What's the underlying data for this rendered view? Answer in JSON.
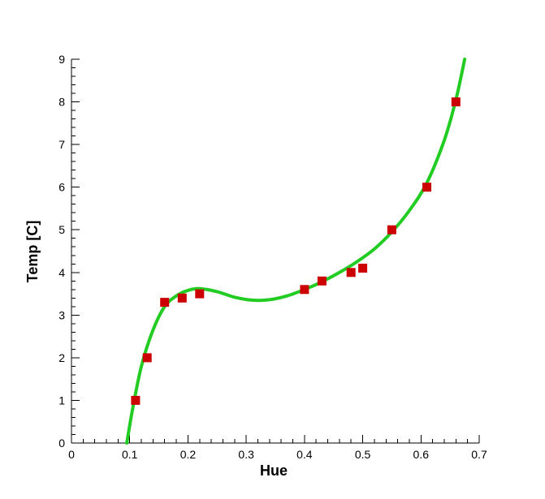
{
  "chart_data": {
    "type": "scatter",
    "title": "",
    "xlabel": "Hue",
    "ylabel": "Temp [C]",
    "xlim": [
      0,
      0.7
    ],
    "ylim": [
      0,
      9
    ],
    "x_ticks": [
      "0",
      "0.1",
      "0.2",
      "0.3",
      "0.4",
      "0.5",
      "0.6",
      "0.7"
    ],
    "y_ticks": [
      "0",
      "1",
      "2",
      "3",
      "4",
      "5",
      "6",
      "7",
      "8",
      "9"
    ],
    "grid": false,
    "legend": "none",
    "series": [
      {
        "type": "line",
        "color": "#22cc22",
        "x": [
          0.095,
          0.105,
          0.12,
          0.14,
          0.16,
          0.18,
          0.2,
          0.22,
          0.25,
          0.28,
          0.31,
          0.34,
          0.37,
          0.4,
          0.43,
          0.46,
          0.49,
          0.52,
          0.55,
          0.58,
          0.61,
          0.64,
          0.66,
          0.675
        ],
        "y": [
          0.0,
          0.8,
          1.8,
          2.65,
          3.2,
          3.45,
          3.58,
          3.62,
          3.55,
          3.42,
          3.35,
          3.36,
          3.45,
          3.6,
          3.78,
          4.0,
          4.25,
          4.55,
          4.95,
          5.45,
          6.1,
          7.1,
          8.05,
          9.0
        ]
      },
      {
        "type": "scatter",
        "color": "#cc0000",
        "x": [
          0.11,
          0.13,
          0.16,
          0.19,
          0.22,
          0.4,
          0.43,
          0.48,
          0.5,
          0.55,
          0.61,
          0.66
        ],
        "y": [
          1.0,
          2.0,
          3.3,
          3.4,
          3.5,
          3.6,
          3.8,
          4.0,
          4.1,
          5.0,
          6.0,
          8.0
        ]
      }
    ]
  }
}
